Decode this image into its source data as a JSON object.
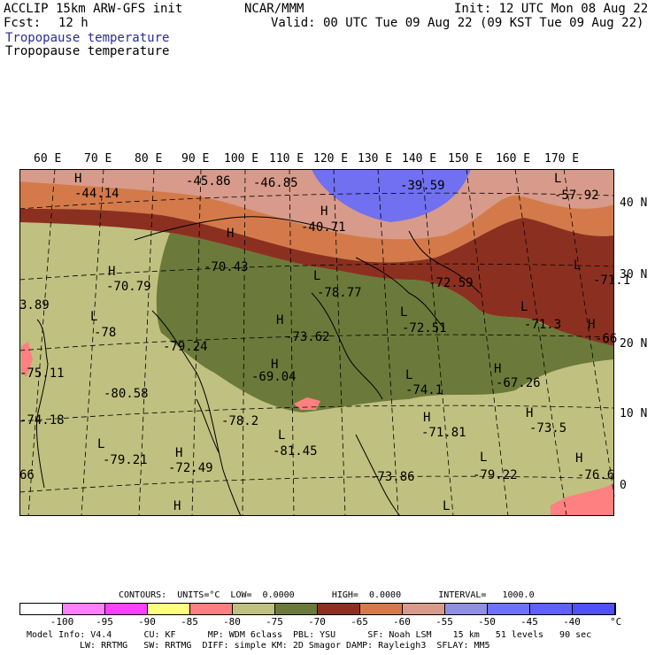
{
  "header": {
    "model": "ACCLIP 15km ARW-GFS init",
    "org": "NCAR/MMM",
    "init": "Init: 12 UTC Mon 08 Aug 22",
    "fcst_label": "Fcst:",
    "fcst_value": "12 h",
    "valid": "Valid: 00 UTC Tue 09 Aug 22 (09 KST Tue 09 Aug 22)",
    "field_title": "Tropopause temperature",
    "field_title2": "Tropopause temperature"
  },
  "lon_labels": [
    "60 E",
    "70 E",
    "80 E",
    "90 E",
    "100 E",
    "110 E",
    "120 E",
    "130 E",
    "140 E",
    "150 E",
    "160 E",
    "170 E"
  ],
  "lat_labels": [
    "40 N",
    "30 N",
    "20 N",
    "10 N",
    "0"
  ],
  "map_labels": [
    {
      "t": "H"
    },
    {
      "t": "-44.14"
    },
    {
      "t": "-45.86"
    },
    {
      "t": "-46.85"
    },
    {
      "t": "-39.59"
    },
    {
      "t": "L"
    },
    {
      "t": "-57.92"
    },
    {
      "t": "H"
    },
    {
      "t": "-40.71"
    },
    {
      "t": "H"
    },
    {
      "t": "-70.43"
    },
    {
      "t": "H"
    },
    {
      "t": "-70.79"
    },
    {
      "t": "L"
    },
    {
      "t": "-78.77"
    },
    {
      "t": "-72.59"
    },
    {
      "t": "L"
    },
    {
      "t": "-71.1"
    },
    {
      "t": "3.89"
    },
    {
      "t": "L"
    },
    {
      "t": "-78"
    },
    {
      "t": "-79.24"
    },
    {
      "t": "H"
    },
    {
      "t": "-73.62"
    },
    {
      "t": "L"
    },
    {
      "t": "-72.51"
    },
    {
      "t": "L"
    },
    {
      "t": "-71.3"
    },
    {
      "t": "H"
    },
    {
      "t": "-66"
    },
    {
      "t": "-75.11"
    },
    {
      "t": "-80.58"
    },
    {
      "t": "H"
    },
    {
      "t": "-69.04"
    },
    {
      "t": "L"
    },
    {
      "t": "-74.1"
    },
    {
      "t": "H"
    },
    {
      "t": "-67.26"
    },
    {
      "t": "-74.18"
    },
    {
      "t": "-78.2"
    },
    {
      "t": "H"
    },
    {
      "t": "-71.81"
    },
    {
      "t": "H"
    },
    {
      "t": "-73.5"
    },
    {
      "t": "L"
    },
    {
      "t": "L"
    },
    {
      "t": "-79.21"
    },
    {
      "t": "H"
    },
    {
      "t": "-72.49"
    },
    {
      "t": "-81.45"
    },
    {
      "t": "-73.86"
    },
    {
      "t": "L"
    },
    {
      "t": "-79.22"
    },
    {
      "t": "H"
    },
    {
      "t": "-76.6"
    },
    {
      "t": "66"
    },
    {
      "t": "H"
    },
    {
      "t": "L"
    }
  ],
  "legend": {
    "contours": "CONTOURS:  UNITS=°C  LOW=  0.0000       HIGH=  0.0000       INTERVAL=   1000.0",
    "colors": [
      "#ffffff",
      "#ff80ff",
      "#ff40ff",
      "#ffff80",
      "#ff8080",
      "#c0c080",
      "#6b7a3a",
      "#8b3020",
      "#d47a4a",
      "#d89a8a",
      "#9090e0",
      "#7070ff",
      "#6060ff",
      "#5050ff"
    ],
    "ticks": [
      "-100",
      "-95",
      "-90",
      "-85",
      "-80",
      "-75",
      "-70",
      "-65",
      "-60",
      "-55",
      "-50",
      "-45",
      "-40"
    ],
    "unit": "°C"
  },
  "footer": {
    "line1": "Model Info: V4.4      CU: KF      MP: WDM 6class  PBL: YSU      SF: Noah LSM    15 km   51 levels   90 sec",
    "line2": "LW: RRTMG   SW: RRTMG  DIFF: simple KM: 2D Smagor DAMP: Rayleigh3  SFLAY: MM5"
  }
}
